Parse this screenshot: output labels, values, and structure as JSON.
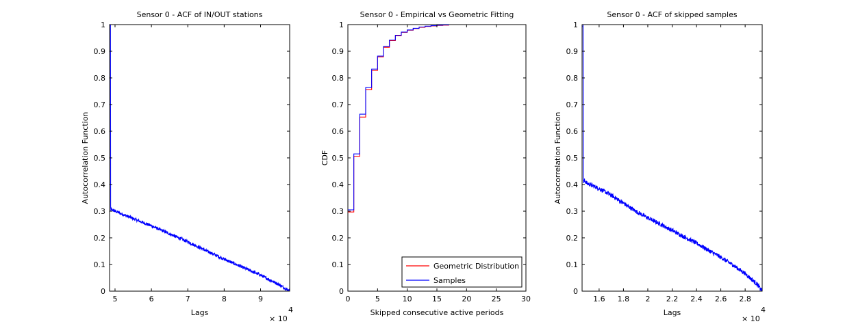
{
  "chart_data": [
    {
      "type": "line",
      "title": "Sensor 0 - ACF of IN/OUT stations",
      "xlabel": "Lags",
      "ylabel": "Autocorrelation Function",
      "x_multiplier_label": "× 10",
      "x_multiplier_exponent": "4",
      "xlim": [
        4.85,
        9.8
      ],
      "ylim": [
        0,
        1
      ],
      "x_ticks": [
        5,
        6,
        7,
        8,
        9
      ],
      "x_tick_labels": [
        "5",
        "6",
        "7",
        "8",
        "9"
      ],
      "y_ticks": [
        0,
        0.1,
        0.2,
        0.3,
        0.4,
        0.5,
        0.6,
        0.7,
        0.8,
        0.9,
        1
      ],
      "y_tick_labels": [
        "0",
        "0.1",
        "0.2",
        "0.3",
        "0.4",
        "0.5",
        "0.6",
        "0.7",
        "0.8",
        "0.9",
        "1"
      ],
      "grid": false,
      "series": [
        {
          "color": "#0000ff",
          "x": [
            4.86,
            4.875,
            4.88,
            4.885,
            4.9,
            5.0,
            5.5,
            6.0,
            6.5,
            7.0,
            7.5,
            8.0,
            8.5,
            9.0,
            9.5,
            9.8
          ],
          "y": [
            1.0,
            1.0,
            0.31,
            0.305,
            0.307,
            0.3,
            0.272,
            0.245,
            0.215,
            0.185,
            0.152,
            0.12,
            0.09,
            0.06,
            0.025,
            0.0
          ],
          "noise": 0.006
        }
      ]
    },
    {
      "type": "line",
      "title": "Sensor 0 - Empirical vs Geometric Fitting",
      "xlabel": "Skipped consecutive active periods",
      "ylabel": "CDF",
      "xlim": [
        0,
        30
      ],
      "ylim": [
        0,
        1
      ],
      "x_ticks": [
        0,
        5,
        10,
        15,
        20,
        25,
        30
      ],
      "x_tick_labels": [
        "0",
        "5",
        "10",
        "15",
        "20",
        "25",
        "30"
      ],
      "y_ticks": [
        0,
        0.1,
        0.2,
        0.3,
        0.4,
        0.5,
        0.6,
        0.7,
        0.8,
        0.9,
        1
      ],
      "y_tick_labels": [
        "0",
        "0.1",
        "0.2",
        "0.3",
        "0.4",
        "0.5",
        "0.6",
        "0.7",
        "0.8",
        "0.9",
        "1"
      ],
      "grid": false,
      "legend_position": "bottom-right",
      "series": [
        {
          "name": "Geometric Distribution",
          "color": "#ff0000",
          "step": true,
          "x": [
            0,
            1,
            2,
            3,
            4,
            5,
            6,
            7,
            8,
            9,
            10,
            11,
            12,
            13,
            14,
            15,
            16,
            17
          ],
          "y": [
            0.297,
            0.506,
            0.653,
            0.756,
            0.828,
            0.879,
            0.915,
            0.94,
            0.958,
            0.971,
            0.979,
            0.985,
            0.99,
            0.993,
            0.995,
            0.997,
            0.998,
            1.0
          ]
        },
        {
          "name": "Samples",
          "color": "#0000ff",
          "step": true,
          "x": [
            0,
            1,
            2,
            3,
            4,
            5,
            6,
            7,
            8,
            9,
            10,
            11,
            12,
            13,
            14,
            15,
            16,
            17
          ],
          "y": [
            0.305,
            0.515,
            0.664,
            0.764,
            0.833,
            0.882,
            0.918,
            0.942,
            0.96,
            0.972,
            0.98,
            0.986,
            0.991,
            0.994,
            0.996,
            0.998,
            0.999,
            1.0
          ]
        }
      ]
    },
    {
      "type": "line",
      "title": "Sensor 0 - ACF of skipped samples",
      "xlabel": "Lags",
      "ylabel": "Autocorrelation Function",
      "x_multiplier_label": "× 10",
      "x_multiplier_exponent": "4",
      "xlim": [
        1.46,
        2.94
      ],
      "ylim": [
        0,
        1
      ],
      "x_ticks": [
        1.6,
        1.8,
        2.0,
        2.2,
        2.4,
        2.6,
        2.8
      ],
      "x_tick_labels": [
        "1.6",
        "1.8",
        "2",
        "2.2",
        "2.4",
        "2.6",
        "2.8"
      ],
      "y_ticks": [
        0,
        0.1,
        0.2,
        0.3,
        0.4,
        0.5,
        0.6,
        0.7,
        0.8,
        0.9,
        1
      ],
      "y_tick_labels": [
        "0",
        "0.1",
        "0.2",
        "0.3",
        "0.4",
        "0.5",
        "0.6",
        "0.7",
        "0.8",
        "0.9",
        "1"
      ],
      "grid": false,
      "series": [
        {
          "color": "#0000ff",
          "x": [
            1.465,
            1.468,
            1.47,
            1.472,
            1.48,
            1.5,
            1.6,
            1.7,
            1.8,
            1.9,
            2.0,
            2.1,
            2.2,
            2.3,
            2.4,
            2.5,
            2.6,
            2.7,
            2.8,
            2.9,
            2.94
          ],
          "y": [
            1.0,
            1.0,
            0.42,
            0.41,
            0.415,
            0.405,
            0.385,
            0.36,
            0.33,
            0.3,
            0.275,
            0.252,
            0.228,
            0.203,
            0.18,
            0.153,
            0.127,
            0.098,
            0.066,
            0.025,
            0.0
          ],
          "noise": 0.008
        }
      ]
    }
  ]
}
